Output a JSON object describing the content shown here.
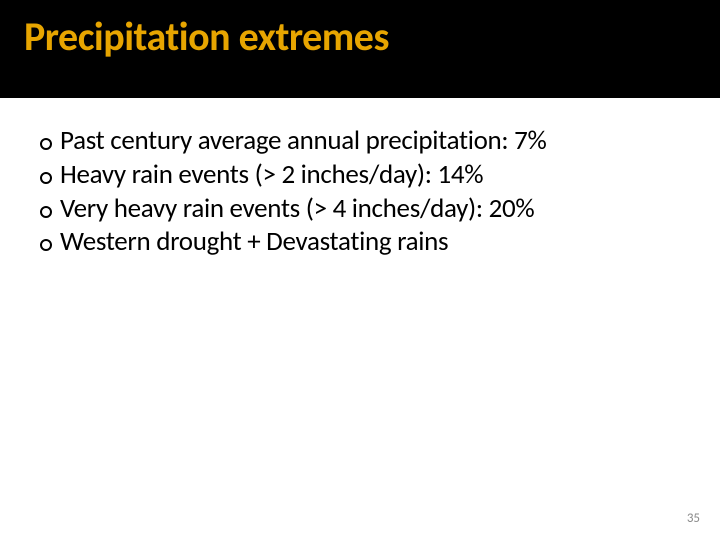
{
  "title": "Precipitation extremes",
  "title_color": "#e7a500",
  "header_bg": "#000000",
  "body_bg": "#ffffff",
  "text_color": "#000000",
  "title_fontsize": 40,
  "body_fontsize": 27,
  "bullets": [
    "Past century average annual precipitation: 7%",
    "Heavy rain events (> 2 inches/day): 14%",
    "Very heavy rain events (> 4 inches/day): 20%",
    "Western drought + Devastating rains"
  ],
  "page_number": "35",
  "page_number_color": "#8a8a8a",
  "page_number_fontsize": 13
}
